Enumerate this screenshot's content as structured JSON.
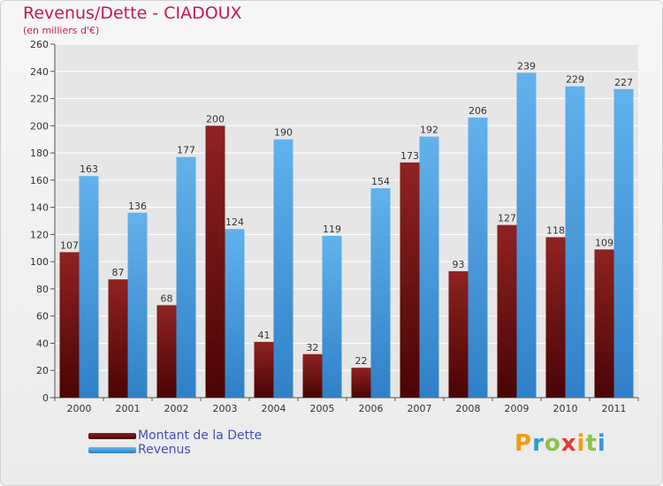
{
  "chart_data": {
    "type": "bar",
    "title": "Revenus/Dette - CIADOUX",
    "subtitle": "(en milliers d'€)",
    "categories": [
      "2000",
      "2001",
      "2002",
      "2003",
      "2004",
      "2005",
      "2006",
      "2007",
      "2008",
      "2009",
      "2010",
      "2011"
    ],
    "series": [
      {
        "name": "Montant de la Dette",
        "color": "#7a1414",
        "values": [
          107,
          87,
          68,
          200,
          41,
          32,
          22,
          173,
          93,
          127,
          118,
          109
        ]
      },
      {
        "name": "Revenus",
        "color": "#4a9fe0",
        "values": [
          163,
          136,
          177,
          124,
          190,
          119,
          154,
          192,
          206,
          239,
          229,
          227
        ]
      }
    ],
    "ylim": [
      0,
      260
    ],
    "yticks": [
      0,
      20,
      40,
      60,
      80,
      100,
      120,
      140,
      160,
      180,
      200,
      220,
      240,
      260
    ],
    "grid": true,
    "legend_position": "bottom-left"
  },
  "brand": {
    "letters": [
      "P",
      "r",
      "o",
      "x",
      "i",
      "t",
      "i"
    ],
    "colors": [
      "#f39c12",
      "#2e9bd6",
      "#8bc34a",
      "#e53935",
      "#f39c12",
      "#8bc34a",
      "#2e9bd6"
    ]
  }
}
